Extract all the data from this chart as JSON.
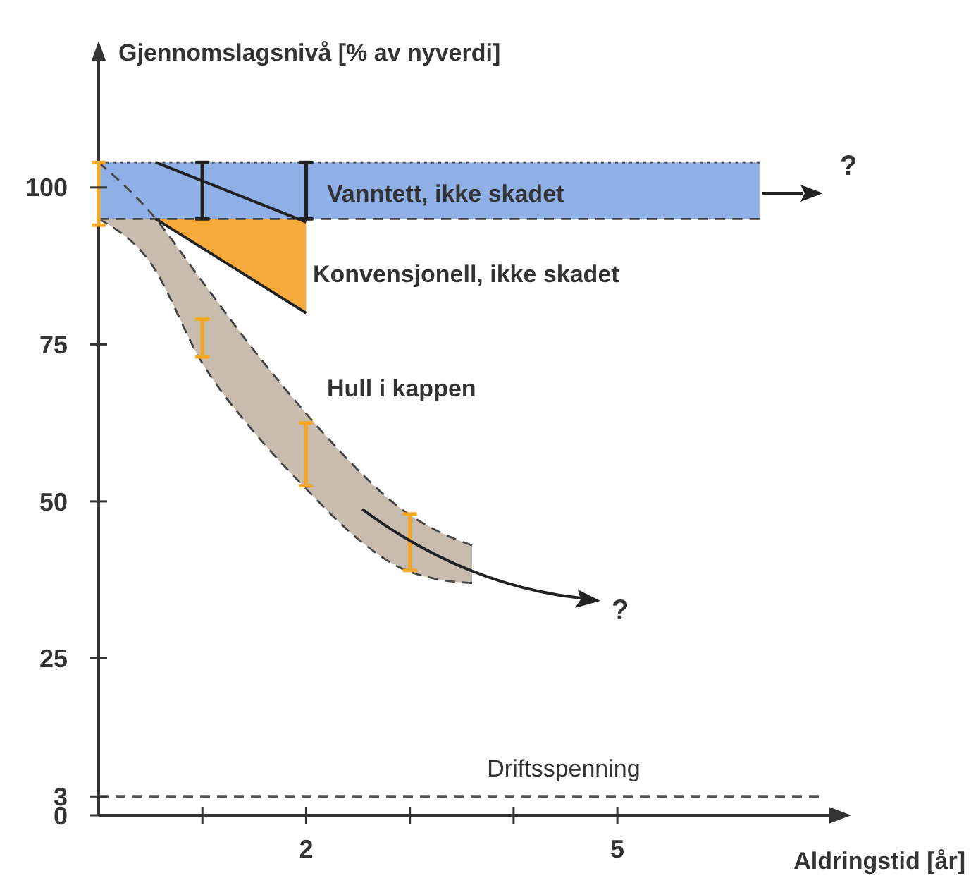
{
  "chart_data": {
    "type": "line",
    "ylabel": "Gjennomslagsnivå [% av nyverdi]",
    "xlabel": "Aldringstid [år]",
    "xlim": [
      0,
      7.2
    ],
    "ylim": [
      0,
      122
    ],
    "xticks": [
      {
        "value": 1,
        "label": null
      },
      2,
      {
        "value": 3,
        "label": null
      },
      {
        "value": 4,
        "label": null
      },
      5
    ],
    "yticks": [
      0,
      3,
      25,
      50,
      75,
      100
    ],
    "grid": false,
    "series": [
      {
        "color": "#444444",
        "line_style": "dashed",
        "x": [
          0,
          0.5,
          1,
          1.5,
          2,
          2.5,
          2.9,
          3.3,
          3.6
        ],
        "values": [
          104,
          96,
          85,
          74,
          64,
          55,
          49,
          45,
          43
        ]
      },
      {
        "color": "#444444",
        "line_style": "dashed",
        "x": [
          0,
          0.5,
          1,
          1.5,
          2,
          2.5,
          2.9,
          3.3,
          3.6
        ],
        "values": [
          95,
          88,
          72,
          61,
          52,
          44,
          39.5,
          37.5,
          37
        ]
      },
      {
        "color": "#555555",
        "line_style": "dotted",
        "x": [
          0,
          6.37
        ],
        "values": [
          104,
          104
        ]
      },
      {
        "color": "#444444",
        "line_style": "dashed",
        "x": [
          0,
          6.37
        ],
        "values": [
          95,
          95
        ]
      },
      {
        "color": "#222222",
        "line_style": "solid",
        "x": [
          0.55,
          2
        ],
        "values": [
          104,
          94.5
        ]
      },
      {
        "color": "#222222",
        "line_style": "solid",
        "x": [
          0.55,
          2
        ],
        "values": [
          95,
          80
        ]
      },
      {
        "type": "bar",
        "color": "#f5a623",
        "x": [
          0,
          1,
          2,
          3
        ],
        "base": [
          94,
          73,
          52.5,
          39
        ],
        "values": [
          10,
          6,
          10,
          9
        ]
      },
      {
        "type": "bar",
        "color": "#222222",
        "x": [
          1,
          2
        ],
        "base": [
          95,
          95
        ],
        "values": [
          9,
          9
        ]
      }
    ],
    "ref_lines": [
      {
        "axis": "y",
        "value": 3,
        "label": "Driftsspenning",
        "color": "#555555",
        "line_style": "dashed"
      }
    ],
    "annotations": [
      "Vanntett, ikke skadet",
      "Konvensjonell, ikke skadet",
      "Hull i kappen",
      "?",
      "?"
    ]
  }
}
